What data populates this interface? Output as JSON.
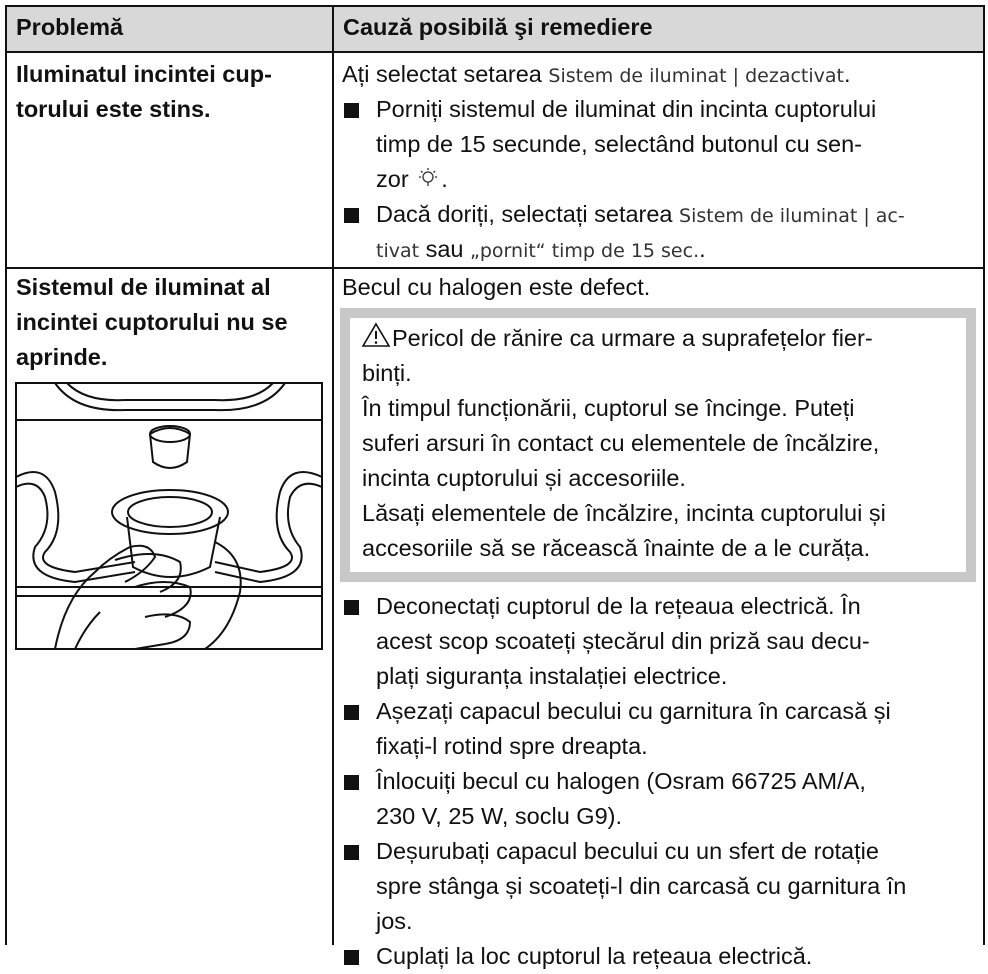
{
  "table": {
    "headers": [
      "Problemă",
      "Cauză posibilă şi remediere"
    ],
    "rows": [
      {
        "problem": [
          "Iluminatul incintei cup-",
          "torului este stins."
        ],
        "cause": {
          "intro": [
            "Ați selectat setarea ",
            "Sistem de iluminat | dezactivat",
            "."
          ],
          "steps": [
            [
              [
                "Porniți sistemul de iluminat din incinta cuptorului"
              ],
              [
                "timp de 15 secunde, selectând butonul cu sen-"
              ],
              [
                "zor ",
                "."
              ]
            ],
            [
              [
                "Dacă doriți, selectați setarea ",
                "Sistem de iluminat | ac-"
              ],
              [
                "tivat",
                " sau ",
                "„pornit“ timp de 15 sec.",
                "."
              ]
            ]
          ]
        }
      },
      {
        "problem": [
          "Sistemul de iluminat al",
          "incintei cuptorului nu se",
          "aprinde."
        ],
        "cause": {
          "intro": [
            "Becul cu halogen este defect."
          ],
          "warning": [
            [
              "Pericol de rănire ca urmare a suprafețelor fier-",
              "binți."
            ],
            [
              "În timpul funcționării, cuptorul se încinge. Puteți",
              "suferi arsuri în contact cu elementele de încălzire,",
              "incinta cuptorului și accesoriile."
            ],
            [
              "Lăsați elementele de încălzire, incinta cuptorului și",
              "accesoriile să se răcească înainte de a le curăța."
            ]
          ],
          "steps": [
            [
              [
                "Deconectați cuptorul de la rețeaua electrică. În"
              ],
              [
                "acest scop scoateți ștecărul din priză sau decu-"
              ],
              [
                "plați siguranța instalației electrice."
              ]
            ],
            [
              [
                "Așezați capacul becului cu garnitura în carcasă și"
              ],
              [
                "fixați-l rotind spre dreapta."
              ]
            ],
            [
              [
                "Înlocuiți becul cu halogen (Osram 66725 AM/A,"
              ],
              [
                "230 V, 25 W, soclu G9)."
              ]
            ],
            [
              [
                "Deșurubați capacul becului cu un sfert de rotație"
              ],
              [
                "spre stânga și scoateți-l din carcasă cu garnitura în"
              ],
              [
                "jos."
              ]
            ],
            [
              [
                "Cuplați la loc cuptorul la rețeaua electrică."
              ]
            ]
          ]
        }
      }
    ]
  }
}
